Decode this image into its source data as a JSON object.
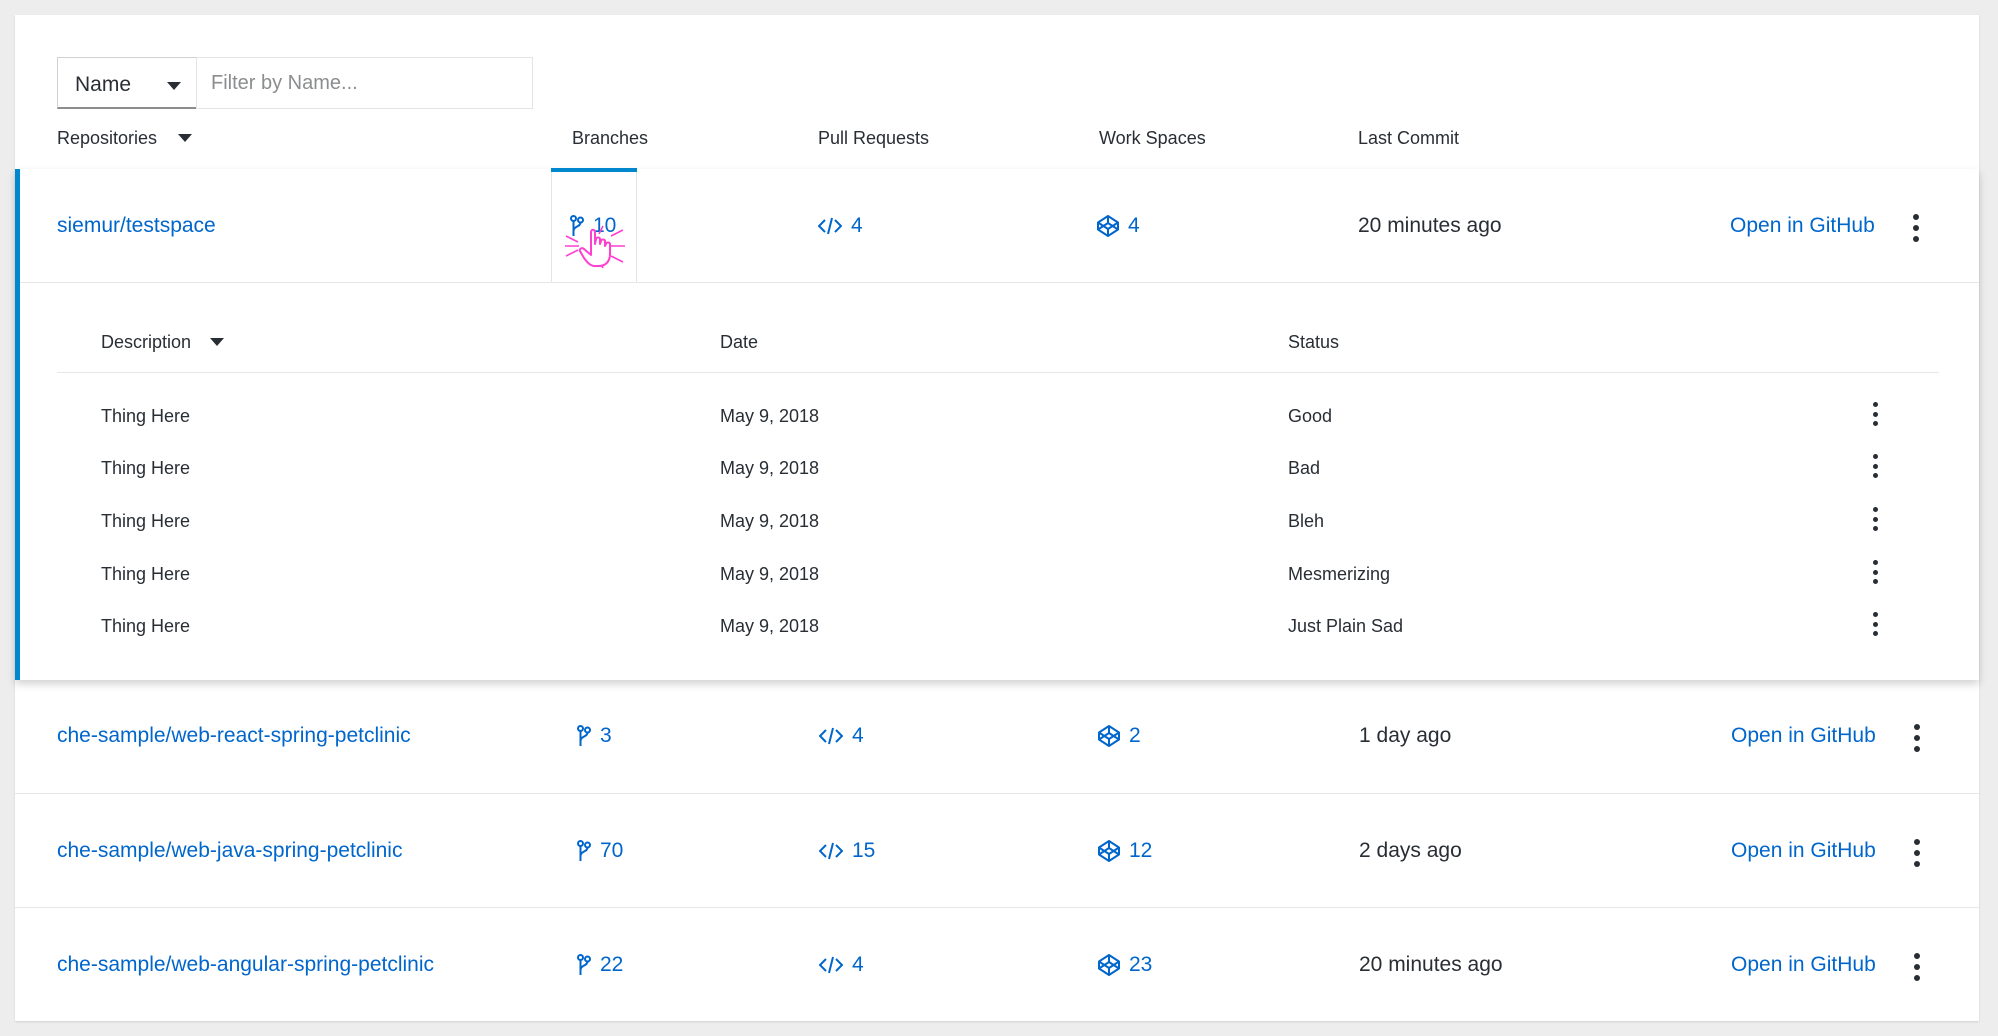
{
  "filter": {
    "selected_field": "Name",
    "placeholder": "Filter by Name...",
    "value": ""
  },
  "columns": {
    "repositories": "Repositories",
    "branches": "Branches",
    "pull_requests": "Pull Requests",
    "work_spaces": "Work Spaces",
    "last_commit": "Last Commit"
  },
  "repos": [
    {
      "name": "siemur/testspace",
      "branches": "10",
      "pull_requests": "4",
      "workspaces": "4",
      "last_commit": "20 minutes ago",
      "action": "Open in GitHub",
      "expanded": true
    },
    {
      "name": "che-sample/web-react-spring-petclinic",
      "branches": "3",
      "pull_requests": "4",
      "workspaces": "2",
      "last_commit": "1 day ago",
      "action": "Open in GitHub"
    },
    {
      "name": "che-sample/web-java-spring-petclinic",
      "branches": "70",
      "pull_requests": "15",
      "workspaces": "12",
      "last_commit": "2 days ago",
      "action": "Open in GitHub"
    },
    {
      "name": "che-sample/web-angular-spring-petclinic",
      "branches": "22",
      "pull_requests": "4",
      "workspaces": "23",
      "last_commit": "20 minutes ago",
      "action": "Open in GitHub"
    }
  ],
  "branches_table": {
    "columns": {
      "description": "Description",
      "date": "Date",
      "status": "Status"
    },
    "rows": [
      {
        "description": "Thing Here",
        "date": "May 9, 2018",
        "status": "Good"
      },
      {
        "description": "Thing Here",
        "date": "May 9, 2018",
        "status": "Bad"
      },
      {
        "description": "Thing Here",
        "date": "May 9, 2018",
        "status": "Bleh"
      },
      {
        "description": "Thing Here",
        "date": "May 9, 2018",
        "status": "Mesmerizing"
      },
      {
        "description": "Thing Here",
        "date": "May 9, 2018",
        "status": "Just Plain Sad"
      }
    ]
  },
  "colors": {
    "link": "#0066cc",
    "accent": "#0088ce",
    "text": "#292e34",
    "cursor_highlight": "#ff3fd0"
  },
  "icons": {
    "branch": "code-branch-icon",
    "pull_request": "code-icon",
    "workspace": "codepen-icon",
    "kebab": "kebab-menu-icon",
    "sort": "caret-down-icon",
    "cursor": "hand-pointer-cursor-icon"
  }
}
